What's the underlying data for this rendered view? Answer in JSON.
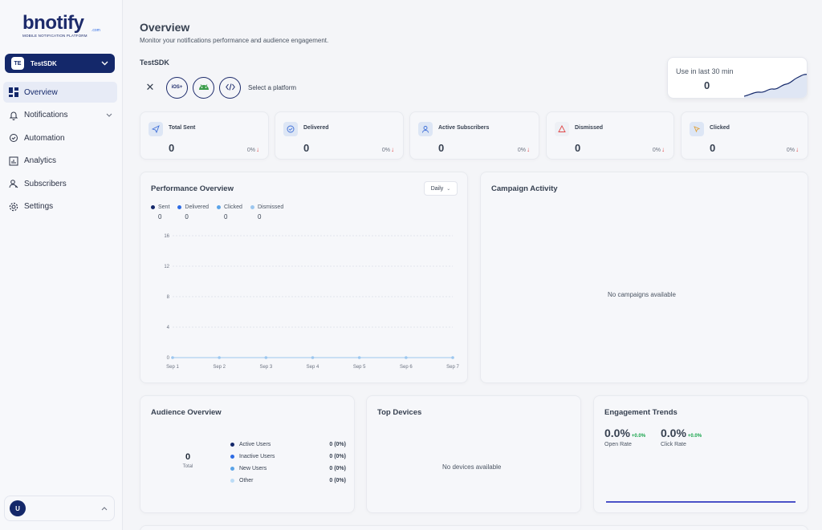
{
  "brand": {
    "name": "bnotify",
    "dot_tld": ".com",
    "tagline": "MOBILE NOTIFICATION PLATFORM"
  },
  "project": {
    "initials": "TE",
    "name": "TestSDK"
  },
  "nav": [
    {
      "label": "Overview",
      "icon": "dashboard-icon",
      "active": true
    },
    {
      "label": "Notifications",
      "icon": "bell-icon",
      "has_submenu": true
    },
    {
      "label": "Automation",
      "icon": "automation-icon"
    },
    {
      "label": "Analytics",
      "icon": "analytics-icon"
    },
    {
      "label": "Subscribers",
      "icon": "users-icon"
    },
    {
      "label": "Settings",
      "icon": "gear-icon"
    }
  ],
  "user": {
    "initial": "U"
  },
  "header": {
    "title": "Overview",
    "subtitle": "Monitor your notifications performance and audience engagement.",
    "app_name": "TestSDK"
  },
  "platforms": {
    "ios_label": "iOS+",
    "select_label": "Select a platform"
  },
  "usage": {
    "label": "Use in last 30 min",
    "value": "0"
  },
  "stats": [
    {
      "label": "Total Sent",
      "value": "0",
      "change": "0%",
      "icon": "send-icon"
    },
    {
      "label": "Delivered",
      "value": "0",
      "change": "0%",
      "icon": "check-circle-icon"
    },
    {
      "label": "Active Subscribers",
      "value": "0",
      "change": "0%",
      "icon": "user-icon"
    },
    {
      "label": "Dismissed",
      "value": "0",
      "change": "0%",
      "icon": "warning-icon"
    },
    {
      "label": "Clicked",
      "value": "0",
      "change": "0%",
      "icon": "cursor-icon"
    }
  ],
  "performance": {
    "title": "Performance Overview",
    "period": "Daily",
    "legend": [
      {
        "name": "Sent",
        "value": "0",
        "color": "#14286a"
      },
      {
        "name": "Delivered",
        "value": "0",
        "color": "#2d6be4"
      },
      {
        "name": "Clicked",
        "value": "0",
        "color": "#5aa4e8"
      },
      {
        "name": "Dismissed",
        "value": "0",
        "color": "#9cc7ef"
      }
    ]
  },
  "chart_data": {
    "type": "line",
    "categories": [
      "Sep 1",
      "Sep 2",
      "Sep 3",
      "Sep 4",
      "Sep 5",
      "Sep 6",
      "Sep 7"
    ],
    "y_ticks": [
      "0",
      "4",
      "8",
      "12",
      "16"
    ],
    "ylim": [
      0,
      16
    ],
    "series": [
      {
        "name": "Sent",
        "values": [
          0,
          0,
          0,
          0,
          0,
          0,
          0
        ]
      },
      {
        "name": "Delivered",
        "values": [
          0,
          0,
          0,
          0,
          0,
          0,
          0
        ]
      },
      {
        "name": "Clicked",
        "values": [
          0,
          0,
          0,
          0,
          0,
          0,
          0
        ]
      },
      {
        "name": "Dismissed",
        "values": [
          0,
          0,
          0,
          0,
          0,
          0,
          0
        ]
      }
    ],
    "grid": true
  },
  "campaign": {
    "title": "Campaign Activity",
    "empty": "No campaigns available"
  },
  "audience": {
    "title": "Audience Overview",
    "total_value": "0",
    "total_label": "Total",
    "rows": [
      {
        "name": "Active Users",
        "value": "0 (0%)",
        "color": "#14286a"
      },
      {
        "name": "Inactive Users",
        "value": "0 (0%)",
        "color": "#2d6be4"
      },
      {
        "name": "New Users",
        "value": "0 (0%)",
        "color": "#5aa4e8"
      },
      {
        "name": "Other",
        "value": "0 (0%)",
        "color": "#bcdcf6"
      }
    ]
  },
  "devices": {
    "title": "Top Devices",
    "empty": "No devices available"
  },
  "engagement": {
    "title": "Engagement Trends",
    "open_value": "0.0%",
    "open_delta": "+0.0%",
    "open_label": "Open Rate",
    "click_value": "0.0%",
    "click_delta": "+0.0%",
    "click_label": "Click Rate"
  },
  "colors": {
    "primary": "#14286a",
    "accent": "#2d6be4",
    "negative": "#e04747",
    "positive": "#16a34a"
  }
}
